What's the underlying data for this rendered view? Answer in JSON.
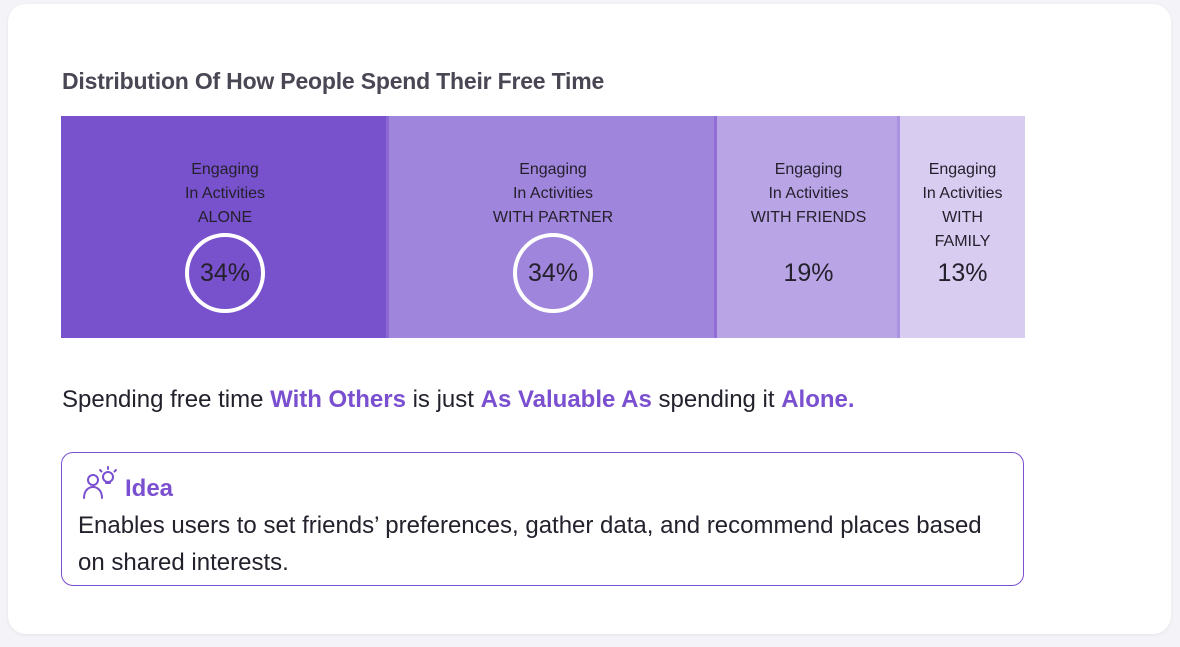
{
  "chart_data": {
    "type": "bar",
    "title": "Distribution Of How People Spend Their Free Time",
    "orientation": "stacked-horizontal",
    "categories": [
      [
        "Engaging",
        "In Activities",
        "ALONE"
      ],
      [
        "Engaging",
        "In Activities",
        "WITH PARTNER"
      ],
      [
        "Engaging",
        "In Activities",
        "WITH FRIENDS"
      ],
      [
        "Engaging",
        "In Activities",
        "WITH",
        "FAMILY"
      ]
    ],
    "values": [
      34,
      34,
      19,
      13
    ],
    "value_labels": [
      "34%",
      "34%",
      "19%",
      "13%"
    ],
    "highlighted": [
      true,
      true,
      false,
      false
    ],
    "colors": [
      "#7851cc",
      "#a085dc",
      "#b9a5e6",
      "#d8cdf1"
    ],
    "divider_colors": [
      "#8f6ad6",
      "#8f6ad6",
      "#a98fe0"
    ]
  },
  "insight": {
    "parts": [
      {
        "text": "Spending free time ",
        "highlight": false
      },
      {
        "text": "With Others",
        "highlight": true
      },
      {
        "text": " is just ",
        "highlight": false
      },
      {
        "text": "As Valuable As",
        "highlight": true
      },
      {
        "text": " spending  it ",
        "highlight": false
      },
      {
        "text": "Alone",
        "highlight": true
      },
      {
        "text": ".",
        "highlight": true
      }
    ]
  },
  "idea": {
    "icon": "person-lightbulb-icon",
    "title": "Idea",
    "text": "Enables users to set  friends’ preferences, gather data, and recommend places based on shared interests."
  },
  "colors": {
    "accent": "#7a4fd0",
    "text": "#24202c",
    "title": "#4a4654"
  }
}
